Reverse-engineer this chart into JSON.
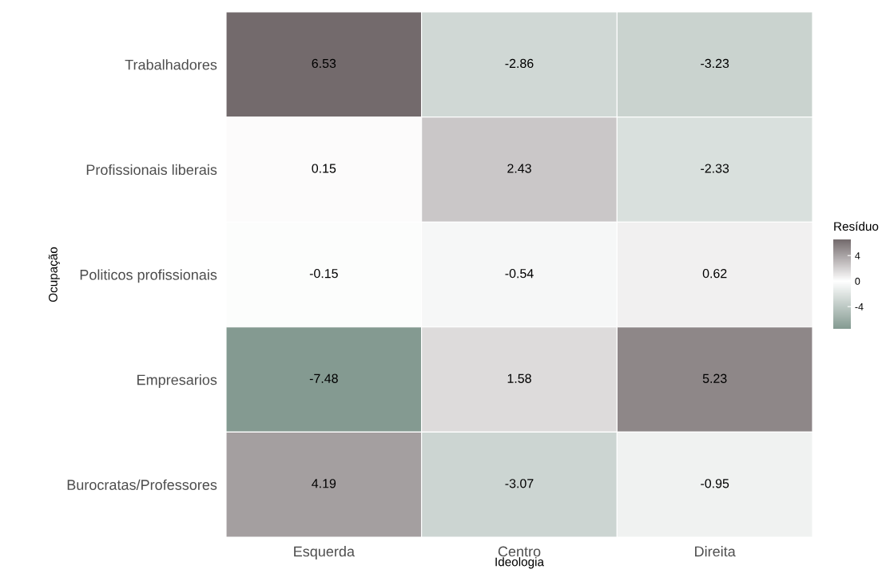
{
  "chart_data": {
    "type": "heatmap",
    "xlabel": "Ideologia",
    "ylabel": "Ocupação",
    "clabel": "Resíduo",
    "categories": [
      "Esquerda",
      "Centro",
      "Direita"
    ],
    "y_categories": [
      "Trabalhadores",
      "Profissionais liberais",
      "Politicos profissionais",
      "Empresarios",
      "Burocratas/Professores"
    ],
    "cells": [
      [
        6.53,
        -2.86,
        -3.23
      ],
      [
        0.15,
        2.43,
        -2.33
      ],
      [
        -0.15,
        -0.54,
        0.62
      ],
      [
        -7.48,
        1.58,
        5.23
      ],
      [
        4.19,
        -3.07,
        -0.95
      ]
    ],
    "colors": [
      "#849a91",
      "#ffffff",
      "#736a6c"
    ],
    "clim": [
      -7.48,
      6.53
    ],
    "cticks": [
      -4,
      0,
      4
    ],
    "data_labels": true,
    "grid": false
  }
}
